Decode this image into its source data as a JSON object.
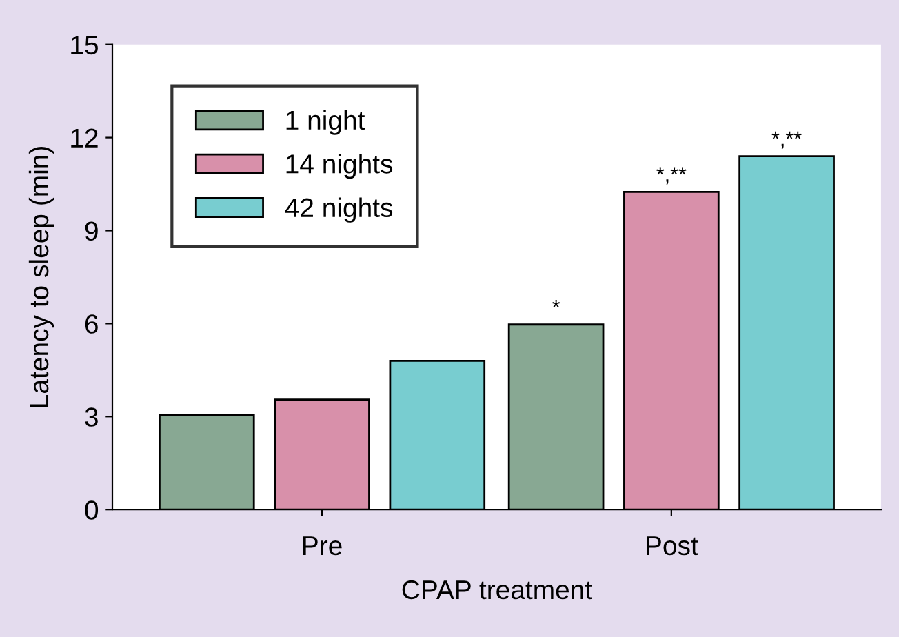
{
  "chart_data": {
    "type": "bar",
    "xlabel": "CPAP treatment",
    "ylabel": "Latency to sleep (min)",
    "categories": [
      "Pre",
      "Post"
    ],
    "series": [
      {
        "name": "1 night",
        "color": "#88a893",
        "values": [
          3.05,
          5.97
        ],
        "value_labels": [
          null,
          "*"
        ]
      },
      {
        "name": "14 nights",
        "color": "#d890aa",
        "values": [
          3.55,
          10.25
        ],
        "value_labels": [
          null,
          "*,**"
        ]
      },
      {
        "name": "42 nights",
        "color": "#78cdd0",
        "values": [
          4.8,
          11.4
        ],
        "value_labels": [
          null,
          "*,**"
        ]
      }
    ],
    "ylim": [
      0,
      15
    ],
    "yticks": [
      0,
      3,
      6,
      9,
      12,
      15
    ],
    "grid": false,
    "legend": "top left"
  }
}
